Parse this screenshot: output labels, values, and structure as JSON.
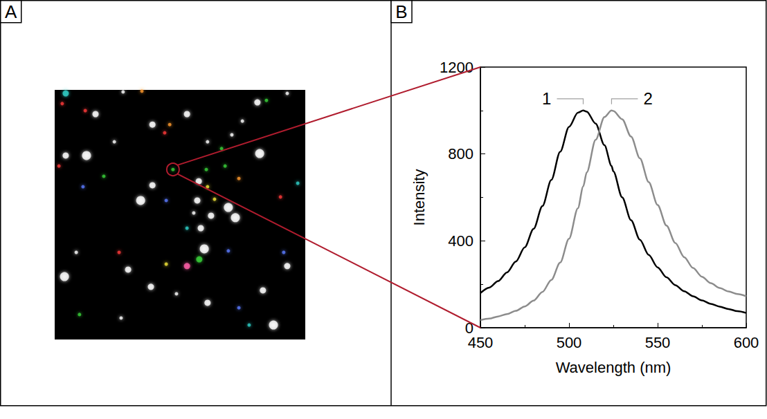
{
  "chart_data": [
    {
      "type": "scatter",
      "panel_label": "A",
      "tick_labels": false,
      "marker": "circle",
      "xlim": [
        0,
        100
      ],
      "ylim": [
        0,
        100
      ],
      "x": [
        4.4,
        27.3,
        34.8,
        16.3,
        12.2,
        3,
        45.9,
        39,
        43.9,
        52.8,
        74.9,
        80.9,
        84.5,
        92.8,
        81.8,
        70.7,
        61,
        66.6,
        4.4,
        1.7,
        12.7,
        23.8,
        11.3,
        19.6,
        39,
        47.2,
        60.5,
        68,
        57.5,
        61,
        73.5,
        90.1,
        97,
        34.3,
        44.5,
        56.9,
        63.8,
        69.3,
        72.1,
        62.4,
        55.5,
        58.3,
        52.8,
        25.7,
        8.6,
        29.3,
        59.7,
        52.8,
        44.5,
        57.7,
        69.3,
        91.4,
        92.8,
        3.9,
        38.4,
        48.6,
        61,
        73.5,
        83.1,
        87.3,
        9.9,
        26.5,
        77.6
      ],
      "y": [
        1.4,
        0.8,
        0.5,
        9.7,
        8.3,
        5.5,
        13.9,
        13.9,
        17.2,
        9.7,
        12.5,
        5,
        4.2,
        1.4,
        25.5,
        18,
        20.8,
        23.5,
        26.3,
        30.5,
        26.3,
        20.8,
        38.8,
        34.6,
        38.2,
        31.9,
        31.9,
        30.5,
        36.6,
        38.8,
        35.5,
        42.9,
        37.4,
        44.3,
        44.3,
        44.3,
        43.8,
        47.1,
        51.2,
        50.4,
        49.3,
        55.4,
        55.4,
        65.1,
        65.1,
        72,
        63.7,
        70.6,
        69.8,
        67.9,
        64.5,
        65.1,
        70.6,
        74.8,
        78.9,
        81.7,
        85.3,
        87.3,
        80.3,
        94.2,
        90,
        91.4,
        94.2
      ],
      "sizes": [
        2,
        1,
        1,
        2,
        1,
        1,
        1,
        2,
        1,
        2,
        1,
        2,
        1,
        1,
        3,
        1,
        1,
        1,
        2,
        1,
        3,
        1,
        1,
        1,
        2,
        1,
        1,
        1,
        2,
        1,
        1,
        1,
        1,
        3,
        1,
        2,
        1,
        3,
        3,
        2,
        1,
        2,
        1,
        1,
        1,
        2,
        3,
        2,
        1,
        2,
        1,
        1,
        2,
        3,
        2,
        1,
        2,
        1,
        2,
        3,
        1,
        1,
        1
      ],
      "colors": [
        "#2fd0c8",
        "#ffffff",
        "#ff9a2e",
        "#ffffff",
        "#ff3b3b",
        "#ff3b3b",
        "#ff9a2e",
        "#ffffff",
        "#ff3b3b",
        "#ffffff",
        "#ffffff",
        "#ffffff",
        "#3ad13a",
        "#ffffff",
        "#ffffff",
        "#ffffff",
        "#ffffff",
        "#3ad13a",
        "#ffffff",
        "#ff3b3b",
        "#ffffff",
        "#ffffff",
        "#5b7bff",
        "#3ad13a",
        "#ffffff",
        "#3ad13a",
        "#3ad13a",
        "#3ad13a",
        "#ffffff",
        "#f2e63a",
        "#ff9a2e",
        "#ff3b3b",
        "#2fd0c8",
        "#ffffff",
        "#5b7bff",
        "#ffffff",
        "#f2e63a",
        "#ffffff",
        "#ffffff",
        "#ffffff",
        "#ffffff",
        "#ffffff",
        "#2fd0c8",
        "#ff3b3b",
        "#ffffff",
        "#ffffff",
        "#ffffff",
        "#ff5fa8",
        "#f2e63a",
        "#3ad13a",
        "#5b7bff",
        "#5b7bff",
        "#ffffff",
        "#ffffff",
        "#ffffff",
        "#ffffff",
        "#ffffff",
        "#5b7bff",
        "#ffffff",
        "#ffffff",
        "#3ad13a",
        "#ffffff",
        "#2fd0c8"
      ]
    },
    {
      "type": "line",
      "panel_label": "B",
      "x_label": "Wavelength (nm)",
      "y_label": "Intensity",
      "xlim": [
        450,
        600
      ],
      "xticks": [
        450,
        500,
        550,
        600
      ],
      "ylim": [
        0,
        1200
      ],
      "yticks": [
        0,
        400,
        800,
        1200
      ],
      "x": [
        450,
        455,
        460,
        465,
        470,
        475,
        480,
        485,
        490,
        495,
        500,
        505,
        508,
        510,
        515,
        520,
        524,
        525,
        530,
        535,
        540,
        545,
        550,
        555,
        560,
        565,
        570,
        575,
        580,
        585,
        590,
        595,
        600
      ],
      "series": [
        {
          "name": "1",
          "color": "#000000",
          "values": [
            160,
            185,
            215,
            255,
            305,
            370,
            455,
            560,
            680,
            810,
            925,
            990,
            1000,
            995,
            940,
            840,
            745,
            720,
            600,
            495,
            405,
            335,
            278,
            232,
            196,
            168,
            145,
            126,
            110,
            97,
            86,
            76,
            68
          ]
        },
        {
          "name": "2",
          "color": "#8c8c8c",
          "values": [
            35,
            42,
            52,
            63,
            78,
            98,
            125,
            165,
            220,
            300,
            410,
            550,
            650,
            715,
            865,
            970,
            1000,
            998,
            960,
            880,
            780,
            670,
            565,
            470,
            390,
            325,
            275,
            235,
            205,
            183,
            167,
            155,
            145
          ]
        }
      ]
    }
  ]
}
